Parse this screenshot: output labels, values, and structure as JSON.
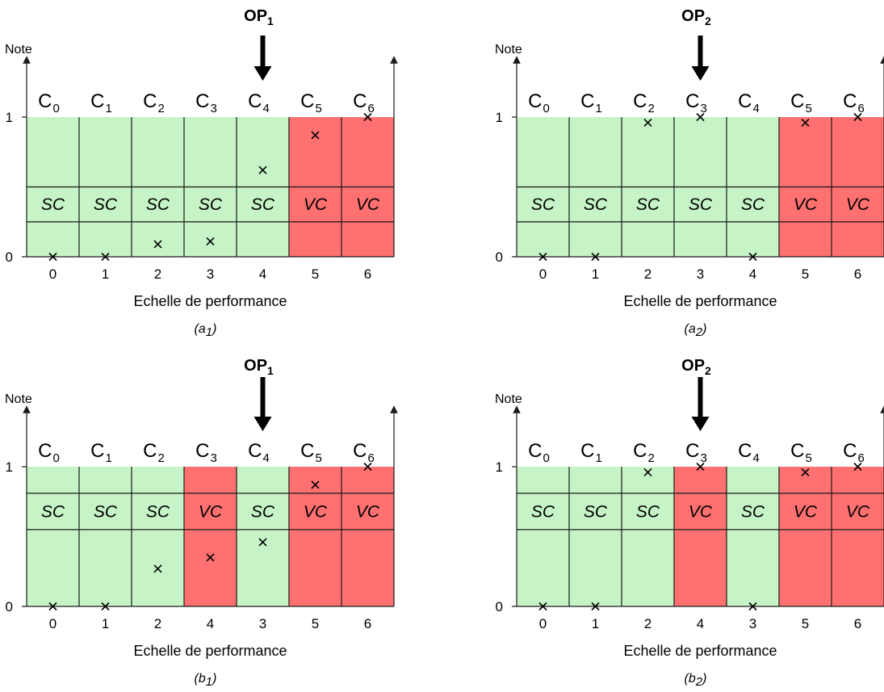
{
  "y_axis_label": "Note",
  "y_ticks": [
    "0",
    "1"
  ],
  "x_axis_title": "Echelle de performance",
  "colors": {
    "sc": "#c6f4c6",
    "vc": "#ff7070",
    "line": "#1a1a1a"
  },
  "panels": [
    {
      "caption": "(a",
      "caption_sub": "1",
      "operator": "OP",
      "operator_sub": "1",
      "operator_col": 4,
      "band": [
        0.25,
        0.5
      ],
      "columns": [
        {
          "label": "C",
          "sub": "0",
          "tick": "0",
          "status": "SC",
          "mark": 0
        },
        {
          "label": "C",
          "sub": "1",
          "tick": "1",
          "status": "SC",
          "mark": 0
        },
        {
          "label": "C",
          "sub": "2",
          "tick": "2",
          "status": "SC",
          "mark": 0.09
        },
        {
          "label": "C",
          "sub": "3",
          "tick": "3",
          "status": "SC",
          "mark": 0.11
        },
        {
          "label": "C",
          "sub": "4",
          "tick": "4",
          "status": "SC",
          "mark": 0.62
        },
        {
          "label": "C",
          "sub": "5",
          "tick": "5",
          "status": "VC",
          "mark": 0.87
        },
        {
          "label": "C",
          "sub": "6",
          "tick": "6",
          "status": "VC",
          "mark": 1.0
        }
      ]
    },
    {
      "caption": "(a",
      "caption_sub": "2",
      "operator": "OP",
      "operator_sub": "2",
      "operator_col": 3,
      "band": [
        0.25,
        0.5
      ],
      "columns": [
        {
          "label": "C",
          "sub": "0",
          "tick": "0",
          "status": "SC",
          "mark": 0
        },
        {
          "label": "C",
          "sub": "1",
          "tick": "1",
          "status": "SC",
          "mark": 0
        },
        {
          "label": "C",
          "sub": "2",
          "tick": "2",
          "status": "SC",
          "mark": 0.96
        },
        {
          "label": "C",
          "sub": "3",
          "tick": "3",
          "status": "SC",
          "mark": 1.0
        },
        {
          "label": "C",
          "sub": "4",
          "tick": "4",
          "status": "SC",
          "mark": 0
        },
        {
          "label": "C",
          "sub": "5",
          "tick": "5",
          "status": "VC",
          "mark": 0.96
        },
        {
          "label": "C",
          "sub": "6",
          "tick": "6",
          "status": "VC",
          "mark": 1.0
        }
      ]
    },
    {
      "caption": "(b",
      "caption_sub": "1",
      "operator": "OP",
      "operator_sub": "1",
      "operator_col": 4,
      "band": [
        0.55,
        0.81
      ],
      "columns": [
        {
          "label": "C",
          "sub": "0",
          "tick": "0",
          "status": "SC",
          "mark": 0
        },
        {
          "label": "C",
          "sub": "1",
          "tick": "1",
          "status": "SC",
          "mark": 0
        },
        {
          "label": "C",
          "sub": "2",
          "tick": "2",
          "status": "SC",
          "mark": 0.27
        },
        {
          "label": "C",
          "sub": "3",
          "tick": "4",
          "status": "VC",
          "mark": 0.35
        },
        {
          "label": "C",
          "sub": "4",
          "tick": "3",
          "status": "SC",
          "mark": 0.46
        },
        {
          "label": "C",
          "sub": "5",
          "tick": "5",
          "status": "VC",
          "mark": 0.87
        },
        {
          "label": "C",
          "sub": "6",
          "tick": "6",
          "status": "VC",
          "mark": 1.0
        }
      ]
    },
    {
      "caption": "(b",
      "caption_sub": "2",
      "operator": "OP",
      "operator_sub": "2",
      "operator_col": 3,
      "band": [
        0.55,
        0.81
      ],
      "columns": [
        {
          "label": "C",
          "sub": "0",
          "tick": "0",
          "status": "SC",
          "mark": 0
        },
        {
          "label": "C",
          "sub": "1",
          "tick": "1",
          "status": "SC",
          "mark": 0
        },
        {
          "label": "C",
          "sub": "2",
          "tick": "2",
          "status": "SC",
          "mark": 0.96
        },
        {
          "label": "C",
          "sub": "3",
          "tick": "4",
          "status": "VC",
          "mark": 1.0
        },
        {
          "label": "C",
          "sub": "4",
          "tick": "3",
          "status": "SC",
          "mark": 0
        },
        {
          "label": "C",
          "sub": "5",
          "tick": "5",
          "status": "VC",
          "mark": 0.96
        },
        {
          "label": "C",
          "sub": "6",
          "tick": "6",
          "status": "VC",
          "mark": 1.0
        }
      ]
    }
  ]
}
